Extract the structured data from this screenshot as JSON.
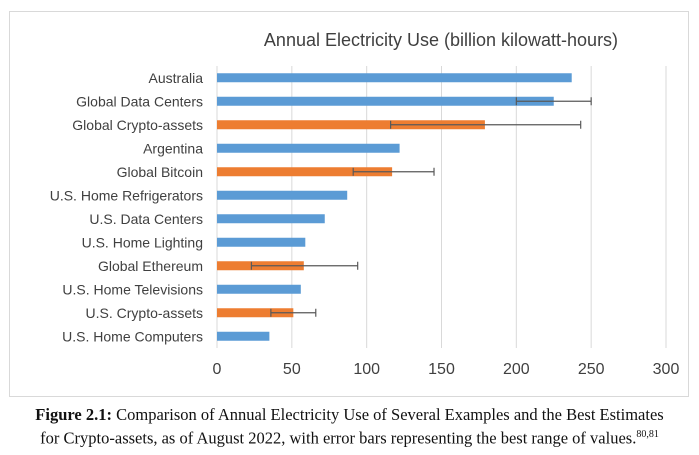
{
  "chart_data": {
    "type": "bar",
    "orientation": "horizontal",
    "title": "Annual Electricity Use (billion kilowatt-hours)",
    "xlabel": "",
    "ylabel": "",
    "xlim": [
      0,
      300
    ],
    "xticks": [
      0,
      50,
      100,
      150,
      200,
      250,
      300
    ],
    "grid": true,
    "legend": "none",
    "colors": {
      "reference": "#5b9bd5",
      "crypto": "#ed7d31",
      "error": "#595959"
    },
    "categories": [
      "Australia",
      "Global Data Centers",
      "Global Crypto-assets",
      "Argentina",
      "Global Bitcoin",
      "U.S. Home Refrigerators",
      "U.S. Data Centers",
      "U.S. Home Lighting",
      "Global Ethereum",
      "U.S. Home Televisions",
      "U.S. Crypto-assets",
      "U.S. Home Computers"
    ],
    "values": [
      237,
      225,
      179,
      122,
      117,
      87,
      72,
      59,
      58,
      56,
      51,
      35
    ],
    "group": [
      "reference",
      "reference",
      "crypto",
      "reference",
      "crypto",
      "reference",
      "reference",
      "reference",
      "crypto",
      "reference",
      "crypto",
      "reference"
    ],
    "error_low": [
      null,
      200,
      116,
      null,
      91,
      null,
      null,
      null,
      23,
      null,
      36,
      null
    ],
    "error_high": [
      null,
      250,
      243,
      null,
      145,
      null,
      null,
      null,
      94,
      null,
      66,
      null
    ]
  },
  "caption": {
    "label": "Figure 2.1:",
    "line1": " Comparison of Annual Electricity Use of Several Examples and the Best Estimates",
    "line2": "for Crypto-assets, as of August 2022, with error bars representing the best range of values.",
    "refs": "80,81"
  }
}
